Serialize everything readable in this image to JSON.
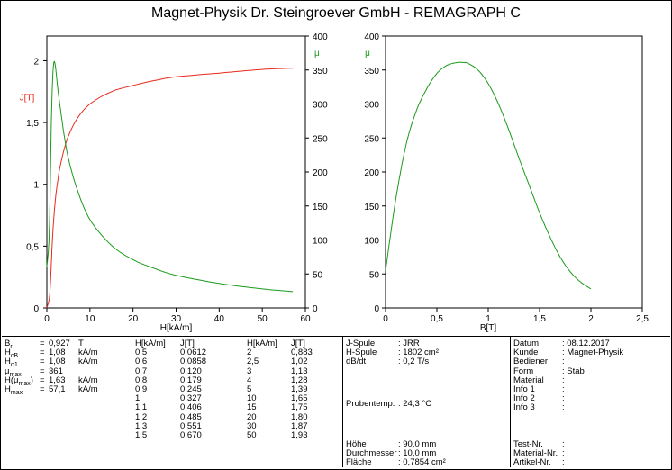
{
  "title": "Magnet-Physik Dr. Steingroever GmbH - REMAGRAPH C",
  "colors": {
    "J": "#e8291c",
    "mu": "#1a9a1a",
    "axis": "#000000"
  },
  "chart_data": [
    {
      "type": "line",
      "xlabel": "H[kA/m]",
      "ylabel": "J[T]",
      "y2label": "μ",
      "xlim": [
        0,
        60
      ],
      "ylim": [
        0,
        2.2
      ],
      "y2lim": [
        0,
        400
      ],
      "x_ticks": [
        "0",
        "10",
        "20",
        "30",
        "40",
        "50",
        "60"
      ],
      "y_ticks": [
        "0",
        "0,5",
        "1",
        "1,5",
        "2"
      ],
      "y2_ticks": [
        "0",
        "50",
        "100",
        "150",
        "200",
        "250",
        "300",
        "350",
        "400"
      ],
      "series": [
        {
          "name": "J[T]",
          "axis": "left",
          "x": [
            0,
            0.5,
            0.6,
            0.7,
            0.8,
            0.9,
            1,
            1.1,
            1.2,
            1.3,
            1.5,
            2,
            2.5,
            3,
            4,
            5,
            7,
            10,
            15,
            20,
            25,
            30,
            40,
            50,
            57.1
          ],
          "y": [
            0,
            0.0612,
            0.0858,
            0.12,
            0.179,
            0.245,
            0.327,
            0.406,
            0.485,
            0.551,
            0.67,
            0.883,
            1.02,
            1.13,
            1.28,
            1.39,
            1.53,
            1.65,
            1.75,
            1.8,
            1.84,
            1.87,
            1.9,
            1.93,
            1.94
          ]
        },
        {
          "name": "μ",
          "axis": "right",
          "x": [
            0,
            0.5,
            0.8,
            1.0,
            1.3,
            1.63,
            2,
            2.5,
            3,
            4,
            5,
            7,
            10,
            15,
            20,
            25,
            30,
            40,
            50,
            57.1
          ],
          "y": [
            60,
            100,
            180,
            260,
            330,
            361,
            355,
            325,
            300,
            255,
            220,
            175,
            130,
            92,
            71,
            58,
            48,
            36,
            28,
            24
          ]
        }
      ]
    },
    {
      "type": "line",
      "xlabel": "B[T]",
      "ylabel": "μ",
      "xlim": [
        0,
        2.5
      ],
      "ylim": [
        0,
        400
      ],
      "x_ticks": [
        "0",
        "0,5",
        "1",
        "1,5",
        "2",
        "2,5"
      ],
      "y_ticks": [
        "0",
        "50",
        "100",
        "150",
        "200",
        "250",
        "300",
        "350",
        "400"
      ],
      "series": [
        {
          "name": "μ",
          "x": [
            0,
            0.1,
            0.2,
            0.3,
            0.4,
            0.5,
            0.6,
            0.7,
            0.75,
            0.8,
            0.9,
            1.0,
            1.1,
            1.2,
            1.3,
            1.4,
            1.5,
            1.6,
            1.7,
            1.8,
            1.9,
            2.0
          ],
          "y": [
            55,
            160,
            240,
            290,
            322,
            345,
            357,
            361,
            361,
            360,
            350,
            330,
            300,
            262,
            220,
            180,
            140,
            105,
            75,
            53,
            38,
            28
          ]
        }
      ]
    }
  ],
  "results": {
    "labels": [
      "Br",
      "HcB",
      "HcJ",
      "μmax",
      "H(μmax)",
      "Hmax"
    ],
    "eq": [
      "=",
      "=",
      "=",
      "=",
      "=",
      "="
    ],
    "values": [
      "0,927",
      "1,08",
      "1,08",
      "361",
      "1,63",
      "57,1"
    ],
    "units": [
      "T",
      "kA/m",
      "kA/m",
      "",
      "kA/m",
      "kA/m"
    ]
  },
  "table": {
    "h_header": "H[kA/m]",
    "j_header": "J[T]",
    "h1": [
      "0,5",
      "0,6",
      "0,7",
      "0,8",
      "0,9",
      "1",
      "1,1",
      "1,2",
      "1,3",
      "1,5"
    ],
    "j1": [
      "0,0612",
      "0,0858",
      "0,120",
      "0,179",
      "0,245",
      "0,327",
      "0,406",
      "0,485",
      "0,551",
      "0,670"
    ],
    "h2": [
      "2",
      "2,5",
      "3",
      "4",
      "5",
      "10",
      "15",
      "20",
      "30",
      "50"
    ],
    "j2": [
      "0,883",
      "1,02",
      "1,13",
      "1,28",
      "1,39",
      "1,65",
      "1,75",
      "1,80",
      "1,87",
      "1,93"
    ]
  },
  "setup": {
    "jspule_label": "J-Spule",
    "jspule_value": ": JRR",
    "hspule_label": "H-Spule",
    "hspule_value": ": 1802 cm²",
    "dbdt_label": "dB/dt",
    "dbdt_value": ": 0,2 T/s",
    "temp_label": "Probentemp.",
    "temp_value": ": 24,3 °C",
    "hoehe_label": "Höhe",
    "hoehe_value": ": 90,0 mm",
    "durch_label": "Durchmesser",
    "durch_value": ": 10,0 mm",
    "flaeche_label": "Fläche",
    "flaeche_value": ": 0,7854 cm²"
  },
  "info": {
    "labels": [
      "Datum",
      "Kunde",
      "Bediener",
      "Form",
      "Material",
      "Info 1",
      "Info 2",
      "Info 3"
    ],
    "values": [
      ": 08.12.2017",
      ": Magnet-Physik",
      ":",
      ": Stab",
      ":",
      ":",
      ":",
      ":"
    ],
    "bottom_labels": [
      "Test-Nr.",
      "Material-Nr.",
      "Artikel-Nr."
    ],
    "bottom_values": [
      ":",
      ":",
      ":"
    ]
  }
}
